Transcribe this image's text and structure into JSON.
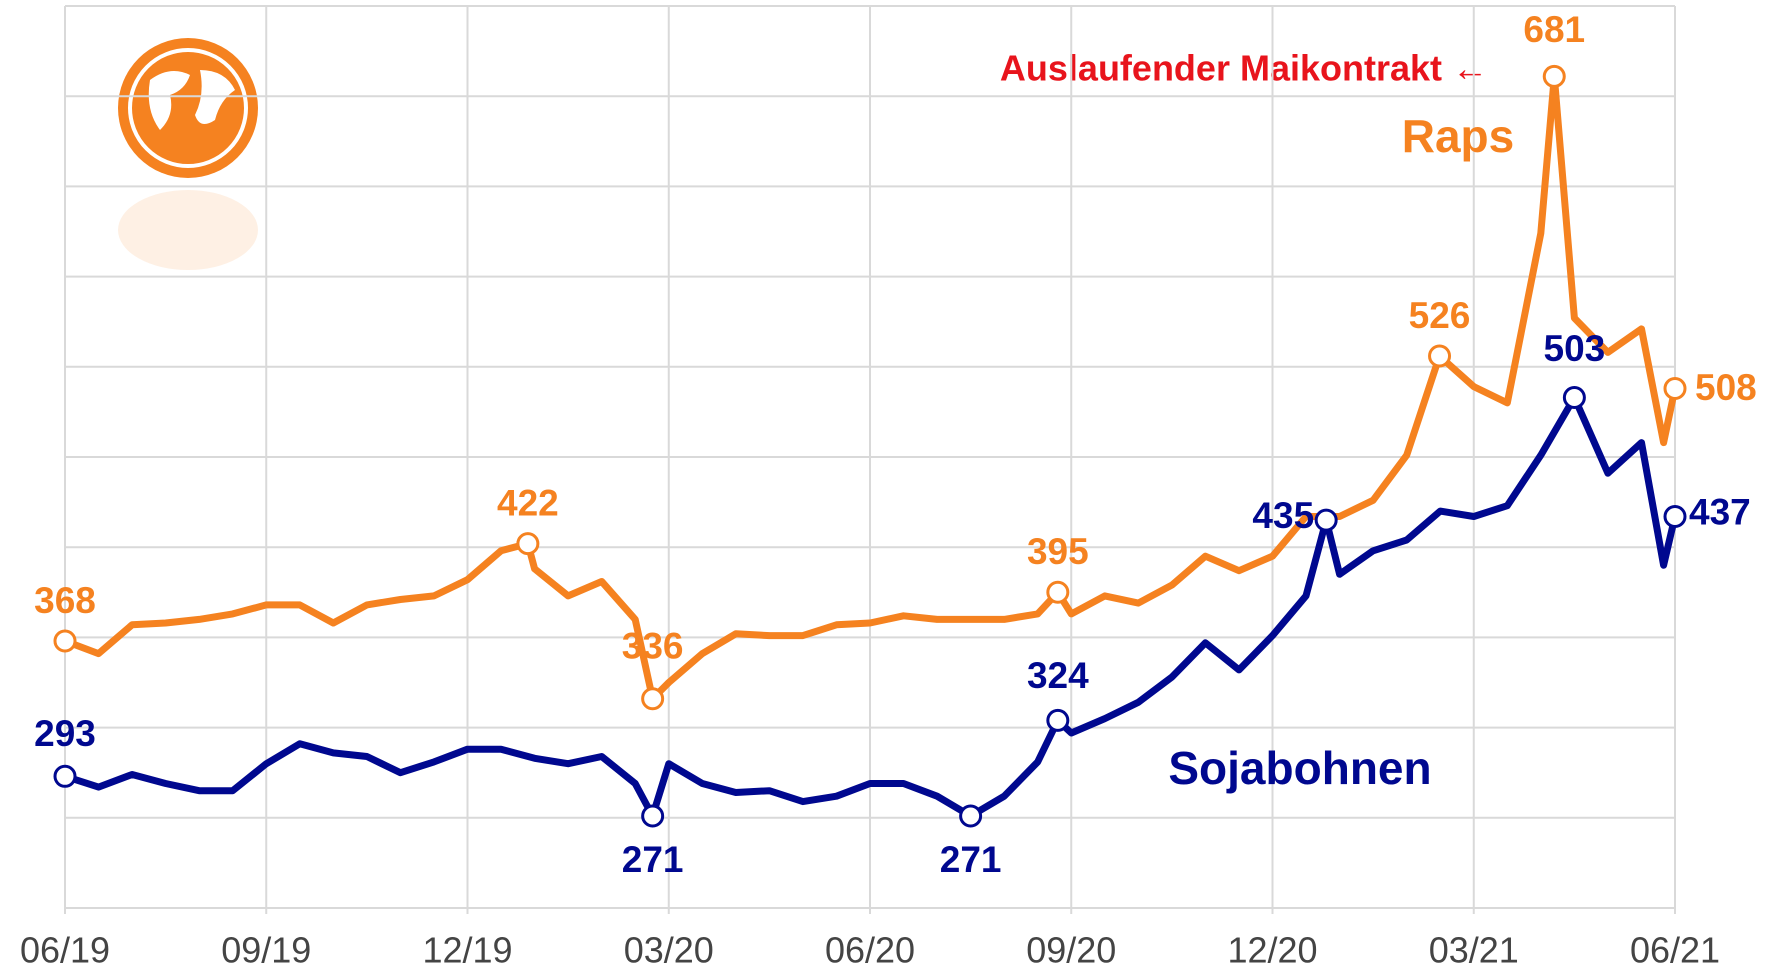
{
  "chart_data": {
    "type": "line",
    "annotations": [
      "Auslaufender Maikontrakt ←"
    ],
    "xlim": [
      0,
      24
    ],
    "xticks": [
      {
        "value": 0,
        "label": "06/19"
      },
      {
        "value": 3,
        "label": "09/19"
      },
      {
        "value": 6,
        "label": "12/19"
      },
      {
        "value": 9,
        "label": "03/20"
      },
      {
        "value": 12,
        "label": "06/20"
      },
      {
        "value": 15,
        "label": "09/20"
      },
      {
        "value": 18,
        "label": "12/20"
      },
      {
        "value": 21,
        "label": "03/21"
      },
      {
        "value": 24,
        "label": "06/21"
      }
    ],
    "ylim": [
      220,
      720
    ],
    "yticks": [
      220,
      270,
      320,
      370,
      420,
      470,
      520,
      570,
      620,
      670,
      720
    ],
    "grid": true,
    "series": [
      {
        "name": "Raps",
        "color": "#f58220",
        "x": [
          0,
          0.5,
          1,
          1.5,
          2,
          2.5,
          3,
          3.5,
          4,
          4.5,
          5,
          5.5,
          6,
          6.5,
          6.9,
          7,
          7.5,
          8,
          8.5,
          8.76,
          9,
          9.5,
          10,
          10.5,
          11,
          11.5,
          12,
          12.5,
          13,
          13.5,
          14,
          14.5,
          14.8,
          15,
          15.5,
          16,
          16.5,
          17,
          17.5,
          18,
          18.5,
          19,
          19.5,
          20,
          20.49,
          21,
          21.5,
          22,
          22.2,
          22.5,
          23,
          23.5,
          23.83,
          24
        ],
        "values": [
          368,
          361,
          377,
          378,
          380,
          383,
          388,
          388,
          378,
          388,
          391,
          393,
          402,
          418,
          422,
          408,
          393,
          401,
          380,
          336,
          345,
          361,
          372,
          371,
          371,
          377,
          378,
          382,
          380,
          380,
          380,
          383,
          395,
          383,
          393,
          389,
          399,
          415,
          407,
          415,
          437,
          437,
          446,
          471,
          526,
          509,
          500,
          594,
          681,
          547,
          528,
          541,
          478,
          508
        ]
      },
      {
        "name": "Sojabohnen",
        "color": "#00088f",
        "x": [
          0,
          0.5,
          1,
          1.5,
          2,
          2.5,
          3,
          3.5,
          4,
          4.5,
          5,
          5.5,
          6,
          6.5,
          7,
          7.5,
          8,
          8.5,
          8.76,
          9,
          9.5,
          10,
          10.5,
          11,
          11.5,
          12,
          12.5,
          13,
          13.5,
          14,
          14.5,
          14.8,
          15,
          15.5,
          16,
          16.5,
          17,
          17.5,
          18,
          18.5,
          18.8,
          19,
          19.5,
          20,
          20.5,
          21,
          21.5,
          22,
          22.5,
          23,
          23.5,
          23.83,
          24
        ],
        "values": [
          293,
          287,
          294,
          289,
          285,
          285,
          300,
          311,
          306,
          304,
          295,
          301,
          308,
          308,
          303,
          300,
          304,
          289,
          271,
          300,
          289,
          284,
          285,
          279,
          282,
          289,
          289,
          282,
          271,
          282,
          301,
          324,
          317,
          325,
          334,
          348,
          367,
          352,
          371,
          393,
          435,
          405,
          418,
          424,
          440,
          437,
          443,
          471,
          503,
          461,
          478,
          410,
          437
        ]
      }
    ]
  }
}
